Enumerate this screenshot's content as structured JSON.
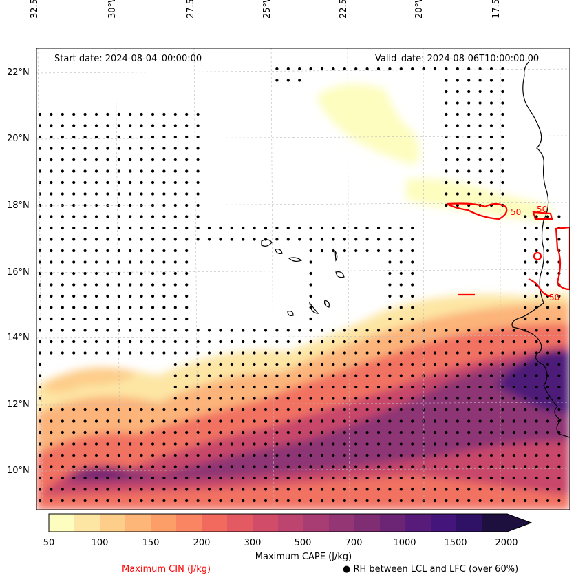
{
  "header": {
    "start_date": "Start date: 2024-08-04_00:00:00",
    "valid_date": "Valid_date: 2024-08-06T10:00:00.00"
  },
  "lon_ticks": [
    "32.5°W",
    "30°W",
    "27.5°W",
    "25°W",
    "22.5°W",
    "20°W",
    "17.5°W"
  ],
  "lat_ticks": [
    "22°N",
    "20°N",
    "18°N",
    "16°N",
    "14°N",
    "12°N",
    "10°N"
  ],
  "colorbar": {
    "label": "Maximum CAPE (J/kg)",
    "ticks": [
      "50",
      "100",
      "150",
      "200",
      "300",
      "500",
      "700",
      "1000",
      "1500",
      "2000"
    ],
    "colors": [
      "#fdfdc0",
      "#fde6a4",
      "#fdcd8a",
      "#fdb678",
      "#fc9e68",
      "#f98563",
      "#f26a5e",
      "#e45a62",
      "#d04c69",
      "#bc446f",
      "#a73d73",
      "#943673",
      "#802e74",
      "#6c2475",
      "#571b7a",
      "#44157a",
      "#2f1265",
      "#1d0f3e"
    ]
  },
  "cin_contour_label": "50",
  "legend": {
    "cin": "Maximum CIN (J/kg)",
    "cin_color": "#ff0000",
    "rh": "RH between LCL and LFC (over 60%)",
    "rh_marker": "●"
  }
}
